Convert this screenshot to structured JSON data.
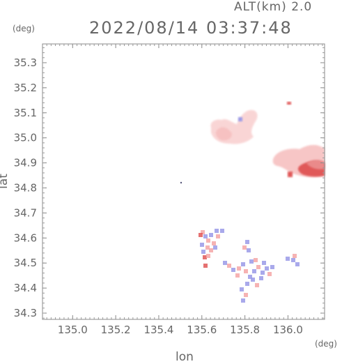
{
  "header": {
    "altitude_label": "ALT(km) 2.0",
    "timestamp": "2022/08/14 03:37:48"
  },
  "chart_data": {
    "type": "heatmap",
    "title": "2022/08/14 03:37:48",
    "xlabel": "lon",
    "ylabel": "lat",
    "x_unit": "(deg)",
    "y_unit": "(deg)",
    "xlim": [
      134.86,
      136.17
    ],
    "ylim": [
      34.275,
      35.375
    ],
    "x_ticks": [
      "135.0",
      "135.2",
      "135.4",
      "135.6",
      "135.8",
      "136.0"
    ],
    "y_ticks": [
      "34.3",
      "34.4",
      "34.5",
      "34.6",
      "34.7",
      "34.8",
      "34.9",
      "35.0",
      "35.1",
      "35.2",
      "35.3"
    ],
    "grid": false,
    "colors": {
      "positive": "#f4a6a6",
      "strong_positive": "#e05858",
      "negative": "#9a9ae8"
    },
    "regions": [
      {
        "lon": 135.73,
        "lat": 35.01,
        "value": 0.25
      },
      {
        "lon": 135.78,
        "lat": 35.06,
        "value": 0.2
      },
      {
        "lon": 136.08,
        "lat": 34.9,
        "value": 0.35
      },
      {
        "lon": 136.13,
        "lat": 34.87,
        "value": 0.8
      },
      {
        "lon": 135.62,
        "lat": 34.58,
        "value": -0.2
      },
      {
        "lon": 135.88,
        "lat": 34.46,
        "value": -0.5
      },
      {
        "lon": 136.05,
        "lat": 34.52,
        "value": -0.6
      },
      {
        "lon": 135.79,
        "lat": 34.4,
        "value": -0.45
      }
    ]
  }
}
